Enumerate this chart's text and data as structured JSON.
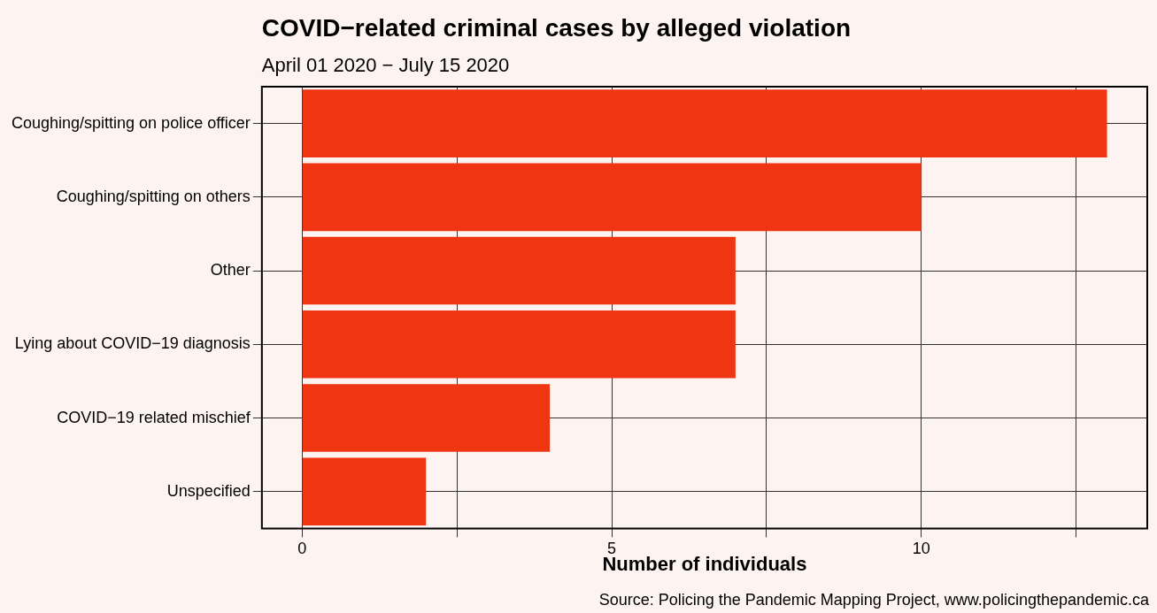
{
  "chart_data": {
    "type": "bar",
    "orientation": "horizontal",
    "title": "COVID−related criminal cases by alleged violation",
    "subtitle": "April 01 2020 − July 15 2020",
    "xlabel": "Number of individuals",
    "categories": [
      "Coughing/spitting on police officer",
      "Coughing/spitting on others",
      "Other",
      "Lying about COVID−19 diagnosis",
      "COVID−19 related mischief",
      "Unspecified"
    ],
    "values": [
      13,
      10,
      7,
      7,
      4,
      2
    ],
    "color": "#f03512",
    "xlim": [
      -0.65,
      13.65
    ],
    "xticks": [
      0,
      {
        "value": 2.5,
        "label": null
      },
      5,
      {
        "value": 7.5,
        "label": null
      },
      10,
      {
        "value": 12.5,
        "label": null
      }
    ],
    "grid": true,
    "legend": false,
    "annotations": [
      "Source: Policing the Pandemic Mapping Project, www.policingthepandemic.ca"
    ]
  }
}
